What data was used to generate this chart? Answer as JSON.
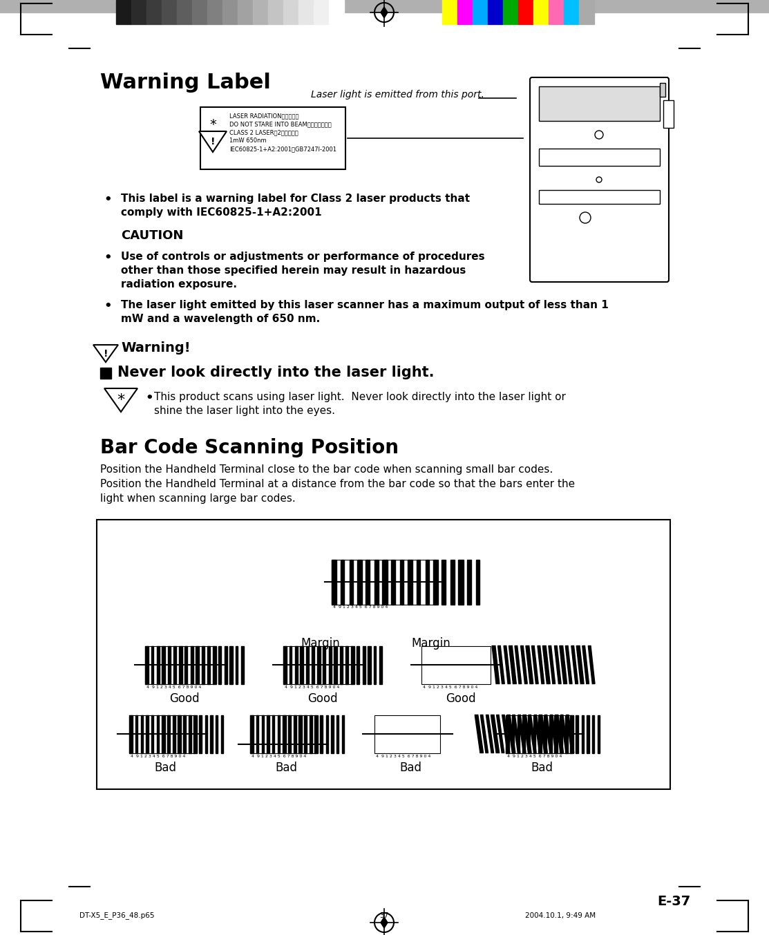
{
  "title": "Warning Label",
  "page_number": "E-37",
  "footer_left": "DT-X5_E_P36_48.p65",
  "footer_center": "37",
  "footer_right": "2004.10.1, 9:49 AM",
  "laser_port_text": "Laser light is emitted from this port.",
  "warning_label_bullets": [
    "This label is a warning label for Class 2 laser products that\ncomply with IEC60825-1+A2:2001"
  ],
  "caution_title": "CAUTION",
  "caution_bullets": [
    "Use of controls or adjustments or performance of procedures\nother than those specified herein may result in hazardous\nradiation exposure.",
    "The laser light emitted by this laser scanner has a maximum output of less than 1\nmW and a wavelength of 650 nm."
  ],
  "warning_exclaim": "Warning!",
  "never_look": "Never look directly into the laser light.",
  "never_look_bullet": "This product scans using laser light.  Never look directly into the laser light or\nshine the laser light into the eyes.",
  "bar_code_title": "Bar Code Scanning Position",
  "bar_code_para1": "Position the Handheld Terminal close to the bar code when scanning small bar codes.\nPosition the Handheld Terminal at a distance from the bar code so that the bars enter the\nlight when scanning large bar codes.",
  "margin_label": "Margin",
  "good_label": "Good",
  "bad_label": "Bad",
  "bg_color": "#ffffff",
  "text_color": "#000000",
  "header_bar_color": "#808080",
  "box_border_color": "#000000"
}
